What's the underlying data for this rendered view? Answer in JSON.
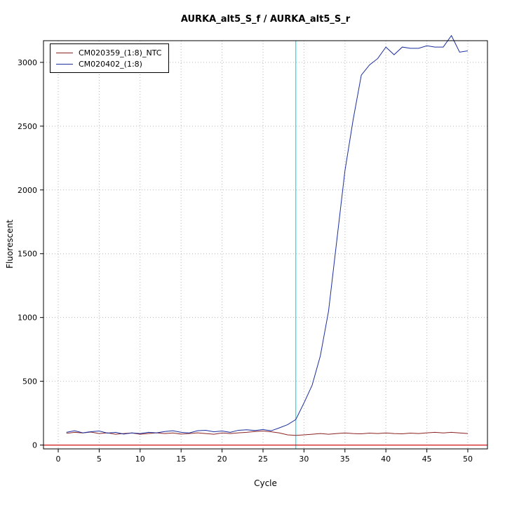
{
  "chart_data": {
    "type": "line",
    "title": "AURKA_alt5_S_f / AURKA_alt5_S_r",
    "xlabel": "Cycle",
    "ylabel": "Fluorescent",
    "xlim": [
      -1.8,
      52.4
    ],
    "ylim": [
      -30,
      3170
    ],
    "x_ticks": [
      0,
      5,
      10,
      15,
      20,
      25,
      30,
      35,
      40,
      45,
      50
    ],
    "y_ticks": [
      0,
      500,
      1000,
      1500,
      2000,
      2500,
      3000
    ],
    "grid": "dotted",
    "grid_color": "#b8b8b8",
    "legend_position": "top-left",
    "threshold_line_y": 0,
    "threshold_color": "#cc0000",
    "vline_x": 29,
    "vline_color": "#00e5ee",
    "x": [
      1,
      2,
      3,
      4,
      5,
      6,
      7,
      8,
      9,
      10,
      11,
      12,
      13,
      14,
      15,
      16,
      17,
      18,
      19,
      20,
      21,
      22,
      23,
      24,
      25,
      26,
      27,
      28,
      29,
      30,
      31,
      32,
      33,
      34,
      35,
      36,
      37,
      38,
      39,
      40,
      41,
      42,
      43,
      44,
      45,
      46,
      47,
      48,
      49,
      50
    ],
    "series": [
      {
        "name": "CM020359_(1:8)_NTC",
        "color": "#8b2323",
        "values": [
          92,
          100,
          95,
          102,
          90,
          96,
          85,
          90,
          95,
          85,
          90,
          96,
          90,
          95,
          86,
          90,
          96,
          90,
          85,
          95,
          90,
          96,
          100,
          106,
          110,
          104,
          95,
          80,
          76,
          80,
          85,
          90,
          85,
          90,
          95,
          90,
          88,
          94,
          90,
          95,
          90,
          88,
          94,
          90,
          96,
          100,
          95,
          100,
          95,
          90
        ]
      },
      {
        "name": "CM020402_(1:8)",
        "color": "#1c2f9e",
        "values": [
          100,
          112,
          96,
          105,
          110,
          94,
          100,
          86,
          95,
          90,
          100,
          96,
          106,
          112,
          100,
          95,
          112,
          116,
          104,
          110,
          100,
          116,
          120,
          114,
          122,
          112,
          135,
          160,
          200,
          330,
          470,
          700,
          1050,
          1600,
          2150,
          2550,
          2900,
          2980,
          3030,
          3120,
          3060,
          3120,
          3110,
          3110,
          3130,
          3120,
          3120,
          3210,
          3080,
          3090
        ]
      }
    ]
  }
}
